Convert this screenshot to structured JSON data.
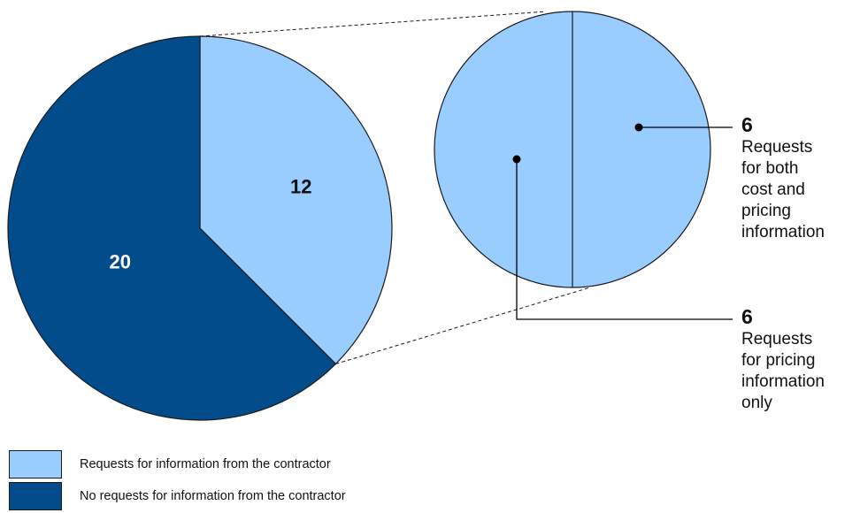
{
  "chart_data": {
    "type": "pie",
    "main_pie": {
      "slices": [
        {
          "label": "Requests for information from the contractor",
          "value": 12,
          "color": "#99ccff",
          "label_color": "#111111"
        },
        {
          "label": "No requests for information from the contractor",
          "value": 20,
          "color": "#034c8c",
          "label_color": "#ffffff"
        }
      ]
    },
    "breakdown_pie": {
      "of": "Requests for information from the contractor",
      "slices": [
        {
          "value": 6,
          "description": "Requests\nfor both\ncost and\npricing\ninformation",
          "color": "#99ccff"
        },
        {
          "value": 6,
          "description": "Requests\nfor pricing\ninformation\nonly",
          "color": "#99ccff"
        }
      ]
    },
    "legend": [
      {
        "label": "Requests for information from the contractor",
        "color": "#99ccff"
      },
      {
        "label": "No requests for information from the contractor",
        "color": "#034c8c"
      }
    ],
    "legend_placement": "bottom-left"
  }
}
